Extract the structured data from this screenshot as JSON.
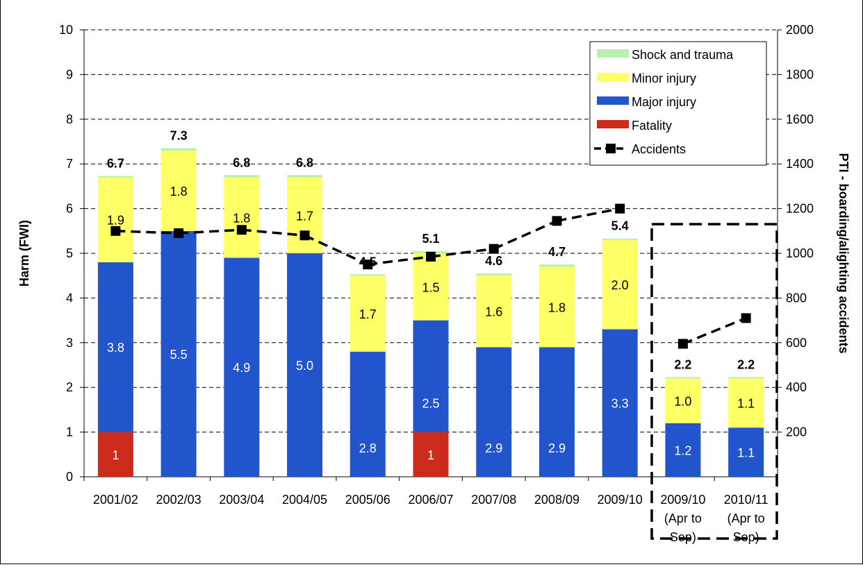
{
  "chart_data": {
    "type": "bar",
    "stacked": true,
    "categories": [
      "2001/02",
      "2002/03",
      "2003/04",
      "2004/05",
      "2005/06",
      "2006/07",
      "2007/08",
      "2008/09",
      "2009/10",
      "2009/10 (Apr to Sep)",
      "2010/11 (Apr to Sep)"
    ],
    "category_lines": [
      [
        "2001/02"
      ],
      [
        "2002/03"
      ],
      [
        "2003/04"
      ],
      [
        "2004/05"
      ],
      [
        "2005/06"
      ],
      [
        "2006/07"
      ],
      [
        "2007/08"
      ],
      [
        "2008/09"
      ],
      [
        "2009/10"
      ],
      [
        "2009/10",
        "(Apr to",
        "Sep)"
      ],
      [
        "2010/11",
        "(Apr to",
        "Sep)"
      ]
    ],
    "series": [
      {
        "name": "Fatality",
        "color": "#cc2a1a",
        "values": [
          1,
          0,
          0,
          0,
          0,
          1,
          0,
          0,
          0,
          0,
          0
        ],
        "labels": [
          "1",
          "",
          "",
          "",
          "",
          "1",
          "",
          "",
          "",
          "",
          ""
        ]
      },
      {
        "name": "Major injury",
        "color": "#2255cc",
        "values": [
          3.8,
          5.5,
          4.9,
          5.0,
          2.8,
          2.5,
          2.9,
          2.9,
          3.3,
          1.2,
          1.1
        ],
        "labels": [
          "3.8",
          "5.5",
          "4.9",
          "5.0",
          "2.8",
          "2.5",
          "2.9",
          "2.9",
          "3.3",
          "1.2",
          "1.1"
        ]
      },
      {
        "name": "Minor injury",
        "color": "#ffff66",
        "values": [
          1.9,
          1.8,
          1.8,
          1.7,
          1.7,
          1.5,
          1.6,
          1.8,
          2.0,
          1.0,
          1.1
        ],
        "labels": [
          "1.9",
          "1.8",
          "1.8",
          "1.7",
          "1.7",
          "1.5",
          "1.6",
          "1.8",
          "2.0",
          "1.0",
          "1.1"
        ]
      },
      {
        "name": "Shock and trauma",
        "color": "#b8f0b0",
        "values": [
          0.03,
          0.05,
          0.05,
          0.05,
          0.03,
          0.05,
          0.05,
          0.05,
          0.03,
          0.03,
          0.03
        ]
      }
    ],
    "totals": [
      "6.7",
      "7.3",
      "6.8",
      "6.8",
      "4.5",
      "5.1",
      "4.6",
      "4.7",
      "5.4",
      "2.2",
      "2.2"
    ],
    "line_series": {
      "name": "Accidents",
      "axis": "right",
      "values": [
        1100,
        1090,
        1105,
        1080,
        950,
        985,
        1020,
        1145,
        1200,
        595,
        710
      ]
    },
    "ylabel": "Harm (FWI)",
    "y2label": "PTI - boarding/alighting accidents",
    "ylim": [
      0,
      10
    ],
    "y2lim": [
      0,
      2000
    ],
    "yticks": [
      "0",
      "1",
      "2",
      "3",
      "4",
      "5",
      "6",
      "7",
      "8",
      "9",
      "10"
    ],
    "y2ticks": [
      "200",
      "400",
      "600",
      "800",
      "1000",
      "1200",
      "1400",
      "1600",
      "1800",
      "2000"
    ],
    "legend": [
      "Shock and trauma",
      "Minor injury",
      "Major injury",
      "Fatality",
      "Accidents"
    ],
    "legend_position": "top-right",
    "grid": true,
    "highlight_box": "dashed box around the last two categories"
  }
}
